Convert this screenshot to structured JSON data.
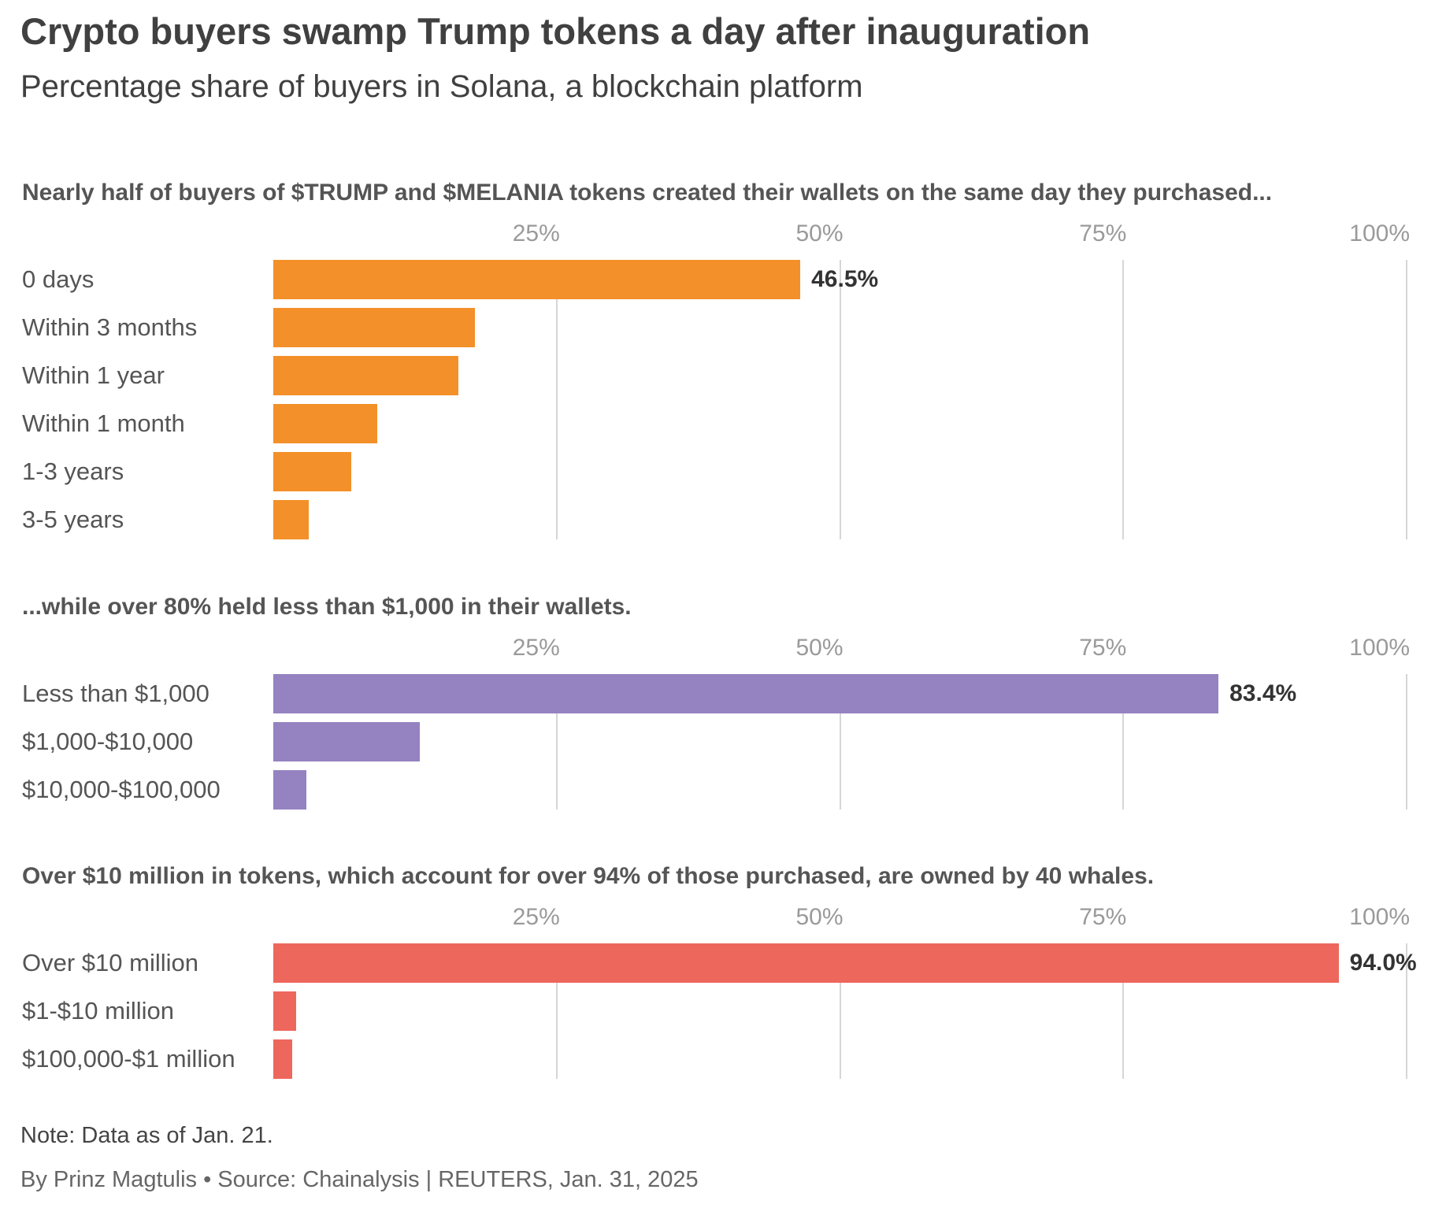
{
  "title": "Crypto buyers swamp Trump tokens a day after inauguration",
  "subtitle": "Percentage share of buyers in Solana, a blockchain platform",
  "note": "Note: Data as of Jan. 21.",
  "byline": "By Prinz Magtulis • Source: Chainalysis | REUTERS, Jan. 31, 2025",
  "chart_data": [
    {
      "type": "bar",
      "orientation": "horizontal",
      "title": "Nearly half of buyers of $TRUMP and $MELANIA tokens created their wallets on the same day they purchased...",
      "categories": [
        "0 days",
        "Within 3 months",
        "Within 1 year",
        "Within 1 month",
        "1-3 years",
        "3-5 years"
      ],
      "values": [
        46.5,
        17.8,
        16.3,
        9.2,
        6.9,
        3.1
      ],
      "data_labels": [
        "46.5%",
        "",
        "",
        "",
        "",
        ""
      ],
      "xlim": [
        0,
        100
      ],
      "ticks": [
        "25%",
        "50%",
        "75%",
        "100%"
      ],
      "tick_values": [
        25,
        50,
        75,
        100
      ],
      "color": "#f39029",
      "grid": true
    },
    {
      "type": "bar",
      "orientation": "horizontal",
      "title": "...while over 80% held less than $1,000 in their wallets.",
      "categories": [
        "Less than $1,000",
        "$1,000-$10,000",
        "$10,000-$100,000"
      ],
      "values": [
        83.4,
        12.9,
        2.9
      ],
      "data_labels": [
        "83.4%",
        "",
        ""
      ],
      "xlim": [
        0,
        100
      ],
      "ticks": [
        "25%",
        "50%",
        "75%",
        "100%"
      ],
      "tick_values": [
        25,
        50,
        75,
        100
      ],
      "color": "#9582c1",
      "grid": true
    },
    {
      "type": "bar",
      "orientation": "horizontal",
      "title": "Over $10 million in tokens, which account for over 94% of those purchased, are owned by 40 whales.",
      "categories": [
        "Over $10 million",
        "$1-$10 million",
        "$100,000-$1 million"
      ],
      "values": [
        94.0,
        2.0,
        1.7
      ],
      "data_labels": [
        "94.0%",
        "",
        ""
      ],
      "xlim": [
        0,
        100
      ],
      "ticks": [
        "25%",
        "50%",
        "75%",
        "100%"
      ],
      "tick_values": [
        25,
        50,
        75,
        100
      ],
      "color": "#ee675c",
      "grid": true
    }
  ]
}
